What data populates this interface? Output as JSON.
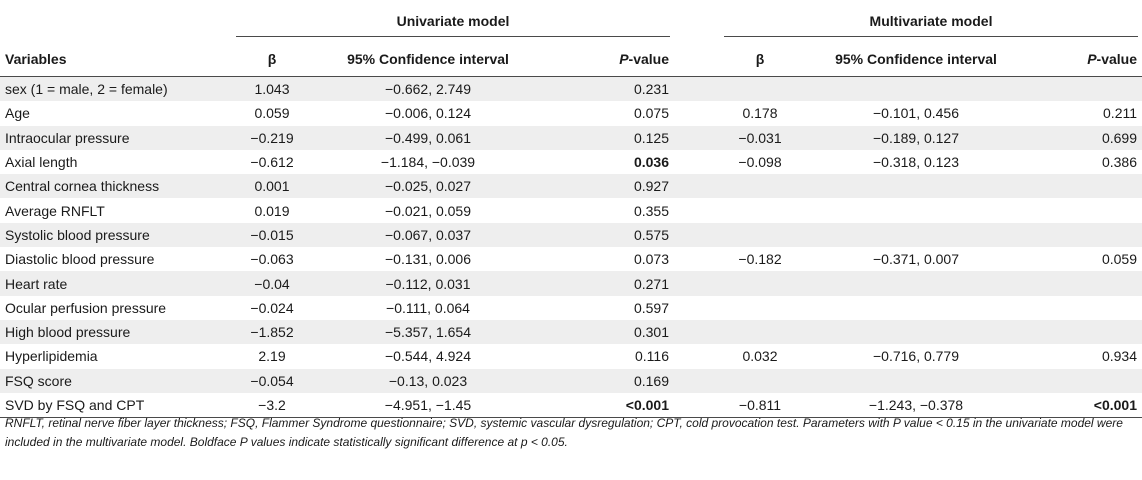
{
  "table": {
    "group_headers": {
      "univariate": "Univariate model",
      "multivariate": "Multivariate model"
    },
    "column_headers": {
      "variables": "Variables",
      "beta": "β",
      "ci": "95% Confidence interval",
      "p_italic": "P",
      "p_suffix": "-value"
    },
    "rows": [
      {
        "variable": "sex (1 = male, 2 = female)",
        "u_beta": "1.043",
        "u_ci": "−0.662, 2.749",
        "u_p": "0.231",
        "m_beta": "",
        "m_ci": "",
        "m_p": ""
      },
      {
        "variable": "Age",
        "u_beta": "0.059",
        "u_ci": "−0.006, 0.124",
        "u_p": "0.075",
        "m_beta": "0.178",
        "m_ci": "−0.101, 0.456",
        "m_p": "0.211"
      },
      {
        "variable": "Intraocular pressure",
        "u_beta": "−0.219",
        "u_ci": "−0.499, 0.061",
        "u_p": "0.125",
        "m_beta": "−0.031",
        "m_ci": "−0.189, 0.127",
        "m_p": "0.699"
      },
      {
        "variable": "Axial length",
        "u_beta": "−0.612",
        "u_ci": "−1.184, −0.039",
        "u_p": "0.036",
        "m_beta": "−0.098",
        "m_ci": "−0.318, 0.123",
        "m_p": "0.386"
      },
      {
        "variable": "Central cornea thickness",
        "u_beta": "0.001",
        "u_ci": "−0.025, 0.027",
        "u_p": "0.927",
        "m_beta": "",
        "m_ci": "",
        "m_p": ""
      },
      {
        "variable": "Average RNFLT",
        "u_beta": "0.019",
        "u_ci": "−0.021, 0.059",
        "u_p": "0.355",
        "m_beta": "",
        "m_ci": "",
        "m_p": ""
      },
      {
        "variable": "Systolic blood pressure",
        "u_beta": "−0.015",
        "u_ci": "−0.067, 0.037",
        "u_p": "0.575",
        "m_beta": "",
        "m_ci": "",
        "m_p": ""
      },
      {
        "variable": "Diastolic blood pressure",
        "u_beta": "−0.063",
        "u_ci": "−0.131, 0.006",
        "u_p": "0.073",
        "m_beta": "−0.182",
        "m_ci": "−0.371, 0.007",
        "m_p": "0.059"
      },
      {
        "variable": "Heart rate",
        "u_beta": "−0.04",
        "u_ci": "−0.112, 0.031",
        "u_p": "0.271",
        "m_beta": "",
        "m_ci": "",
        "m_p": ""
      },
      {
        "variable": "Ocular perfusion pressure",
        "u_beta": "−0.024",
        "u_ci": "−0.111, 0.064",
        "u_p": "0.597",
        "m_beta": "",
        "m_ci": "",
        "m_p": ""
      },
      {
        "variable": "High blood pressure",
        "u_beta": "−1.852",
        "u_ci": "−5.357, 1.654",
        "u_p": "0.301",
        "m_beta": "",
        "m_ci": "",
        "m_p": ""
      },
      {
        "variable": "Hyperlipidemia",
        "u_beta": "2.19",
        "u_ci": "−0.544, 4.924",
        "u_p": "0.116",
        "m_beta": "0.032",
        "m_ci": "−0.716, 0.779",
        "m_p": "0.934"
      },
      {
        "variable": "FSQ score",
        "u_beta": "−0.054",
        "u_ci": "−0.13, 0.023",
        "u_p": "0.169",
        "m_beta": "",
        "m_ci": "",
        "m_p": ""
      },
      {
        "variable": "SVD by FSQ and CPT",
        "u_beta": "−3.2",
        "u_ci": "−4.951, −1.45",
        "u_p": "<0.001",
        "m_beta": "−0.811",
        "m_ci": "−1.243, −0.378",
        "m_p": "<0.001"
      }
    ],
    "bold_cells": [
      {
        "row": 3,
        "col": "u_p"
      },
      {
        "row": 13,
        "col": "u_p"
      },
      {
        "row": 13,
        "col": "m_p"
      }
    ]
  },
  "footnote": "RNFLT, retinal nerve fiber layer thickness; FSQ, Flammer Syndrome questionnaire; SVD, systemic vascular dysregulation; CPT, cold provocation test. Parameters with P value < 0.15 in the univariate model were included in the multivariate model. Boldface P values indicate statistically significant difference at p < 0.05."
}
